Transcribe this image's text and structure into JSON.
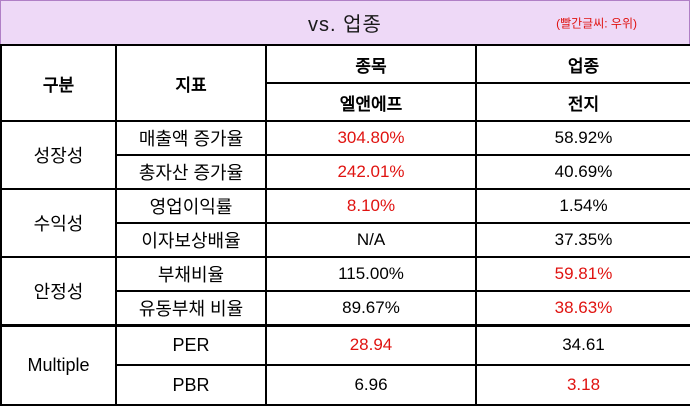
{
  "title": {
    "text": "vs. 업종",
    "note": "(빨간글씨: 우위)"
  },
  "colors": {
    "band_bg": "#eed9f7",
    "band_border": "#b07fc6",
    "highlight_red": "#e01310",
    "text_black": "#000000"
  },
  "chart_data": {
    "type": "table",
    "title": "vs. 업종",
    "note": "(빨간글씨: 우위)",
    "legend_note_meaning": "red text = superiority",
    "header": {
      "col_group": "구분",
      "col_metric": "지표",
      "col_stock": "종목",
      "col_industry": "업종",
      "stock_name": "엘앤에프",
      "industry_name": "전지"
    },
    "groups": [
      {
        "label": "성장성",
        "rows": [
          {
            "metric": "매출액 증가율",
            "stock": "304.80%",
            "industry": "58.92%",
            "stock_red": true,
            "industry_red": false
          },
          {
            "metric": "총자산 증가율",
            "stock": "242.01%",
            "industry": "40.69%",
            "stock_red": true,
            "industry_red": false
          }
        ]
      },
      {
        "label": "수익성",
        "rows": [
          {
            "metric": "영업이익률",
            "stock": "8.10%",
            "industry": "1.54%",
            "stock_red": true,
            "industry_red": false
          },
          {
            "metric": "이자보상배율",
            "stock": "N/A",
            "industry": "37.35%",
            "stock_red": false,
            "industry_red": false
          }
        ]
      },
      {
        "label": "안정성",
        "rows": [
          {
            "metric": "부채비율",
            "stock": "115.00%",
            "industry": "59.81%",
            "stock_red": false,
            "industry_red": true
          },
          {
            "metric": "유동부채 비율",
            "stock": "89.67%",
            "industry": "38.63%",
            "stock_red": false,
            "industry_red": true
          }
        ]
      },
      {
        "label": "Multiple",
        "rows": [
          {
            "metric": "PER",
            "stock": "28.94",
            "industry": "34.61",
            "stock_red": true,
            "industry_red": false
          },
          {
            "metric": "PBR",
            "stock": "6.96",
            "industry": "3.18",
            "stock_red": false,
            "industry_red": true
          }
        ]
      }
    ]
  }
}
